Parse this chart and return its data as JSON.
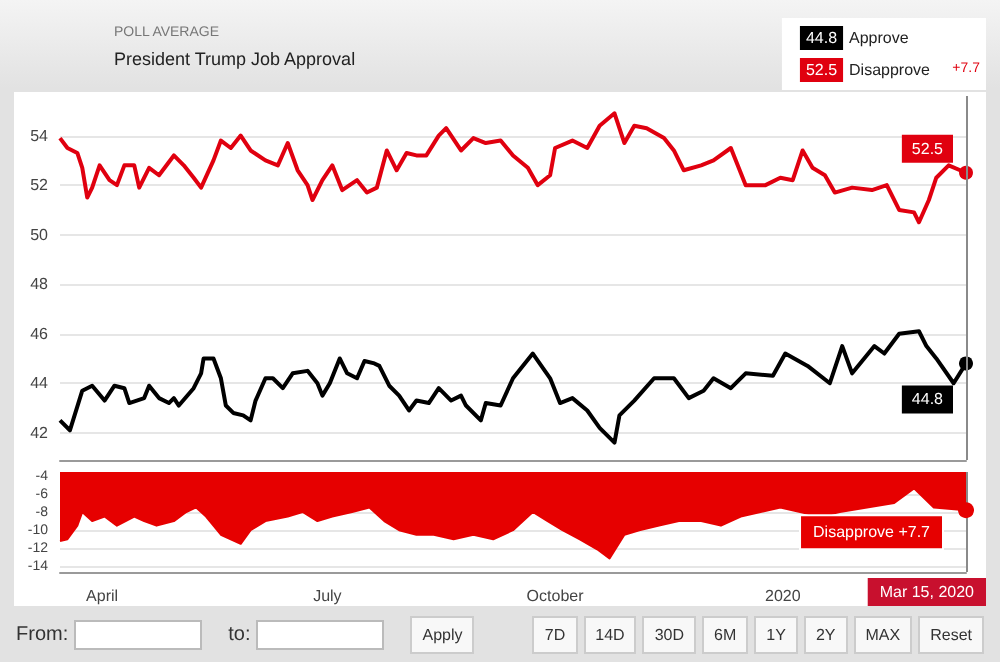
{
  "chart_data": [
    {
      "type": "line",
      "subtitle": "POLL AVERAGE",
      "title": "President Trump Job Approval",
      "xlim": [
        "2019-03-15",
        "2020-03-15"
      ],
      "ylim": [
        40.9,
        55.6
      ],
      "yticks": [
        42,
        44,
        46,
        48,
        50,
        52,
        54
      ],
      "grid": "y",
      "legend": "top right",
      "tick_labels": "y",
      "annotations": [
        "+7.7"
      ],
      "ref_lines": [
        {
          "axis": "x",
          "value": "2020-03-15"
        }
      ],
      "series": [
        {
          "name": "Approve",
          "color": "#000000",
          "x": [
            "2019-03-15",
            "2019-03-19",
            "2019-03-24",
            "2019-03-28",
            "2019-04-02",
            "2019-04-06",
            "2019-04-10",
            "2019-04-12",
            "2019-04-18",
            "2019-04-20",
            "2019-04-24",
            "2019-04-28",
            "2019-04-30",
            "2019-05-02",
            "2019-05-08",
            "2019-05-11",
            "2019-05-12",
            "2019-05-16",
            "2019-05-19",
            "2019-05-21",
            "2019-05-24",
            "2019-05-28",
            "2019-05-31",
            "2019-06-02",
            "2019-06-06",
            "2019-06-09",
            "2019-06-13",
            "2019-06-17",
            "2019-06-23",
            "2019-06-27",
            "2019-06-29",
            "2019-07-02",
            "2019-07-06",
            "2019-07-09",
            "2019-07-13",
            "2019-07-16",
            "2019-07-20",
            "2019-07-22",
            "2019-07-26",
            "2019-07-30",
            "2019-08-03",
            "2019-08-06",
            "2019-08-11",
            "2019-08-15",
            "2019-08-20",
            "2019-08-24",
            "2019-08-26",
            "2019-09-01",
            "2019-09-03",
            "2019-09-09",
            "2019-09-14",
            "2019-09-22",
            "2019-09-29",
            "2019-10-03",
            "2019-10-08",
            "2019-10-14",
            "2019-10-19",
            "2019-10-25",
            "2019-10-27",
            "2019-11-02",
            "2019-11-10",
            "2019-11-18",
            "2019-11-24",
            "2019-11-30",
            "2019-12-04",
            "2019-12-11",
            "2019-12-17",
            "2019-12-28",
            "2020-01-02",
            "2020-01-11",
            "2020-01-20",
            "2020-01-25",
            "2020-01-29",
            "2020-02-07",
            "2020-02-11",
            "2020-02-17",
            "2020-02-25",
            "2020-02-28",
            "2020-03-03",
            "2020-03-10",
            "2020-03-15"
          ],
          "values": [
            42.5,
            42.1,
            43.7,
            43.9,
            43.3,
            43.9,
            43.8,
            43.2,
            43.4,
            43.9,
            43.4,
            43.2,
            43.4,
            43.1,
            43.8,
            44.4,
            45.0,
            45.0,
            44.2,
            43.1,
            42.8,
            42.7,
            42.5,
            43.3,
            44.2,
            44.2,
            43.8,
            44.4,
            44.5,
            44.0,
            43.5,
            44.0,
            45.0,
            44.4,
            44.2,
            44.9,
            44.8,
            44.7,
            43.9,
            43.5,
            42.9,
            43.3,
            43.2,
            43.8,
            43.3,
            43.5,
            43.1,
            42.5,
            43.2,
            43.1,
            44.2,
            45.2,
            44.2,
            43.2,
            43.4,
            42.9,
            42.2,
            41.6,
            42.7,
            43.3,
            44.2,
            44.2,
            43.4,
            43.7,
            44.2,
            43.8,
            44.4,
            44.3,
            45.2,
            44.7,
            44.0,
            45.5,
            44.4,
            45.5,
            45.2,
            46.0,
            46.1,
            45.5,
            45.0,
            44.0,
            44.8
          ],
          "value_labels": [
            null,
            null,
            null,
            null,
            null,
            null,
            null,
            null,
            null,
            null,
            null,
            null,
            null,
            null,
            null,
            null,
            null,
            null,
            null,
            null,
            null,
            null,
            null,
            null,
            null,
            null,
            null,
            null,
            null,
            null,
            null,
            null,
            null,
            null,
            null,
            null,
            null,
            null,
            null,
            null,
            null,
            null,
            null,
            null,
            null,
            null,
            null,
            null,
            null,
            null,
            null,
            null,
            null,
            null,
            null,
            null,
            null,
            null,
            null,
            null,
            null,
            null,
            null,
            null,
            null,
            null,
            null,
            null,
            null,
            null,
            null,
            null,
            null,
            null,
            null,
            null,
            null,
            null,
            null,
            null,
            "44.8"
          ]
        },
        {
          "name": "Disapprove",
          "color": "#e0000f",
          "x": [
            "2019-03-15",
            "2019-03-18",
            "2019-03-22",
            "2019-03-24",
            "2019-03-26",
            "2019-03-28",
            "2019-03-31",
            "2019-04-04",
            "2019-04-07",
            "2019-04-10",
            "2019-04-14",
            "2019-04-16",
            "2019-04-20",
            "2019-04-24",
            "2019-04-30",
            "2019-05-04",
            "2019-05-08",
            "2019-05-11",
            "2019-05-16",
            "2019-05-19",
            "2019-05-23",
            "2019-05-27",
            "2019-05-31",
            "2019-06-06",
            "2019-06-11",
            "2019-06-15",
            "2019-06-19",
            "2019-06-23",
            "2019-06-25",
            "2019-06-29",
            "2019-07-03",
            "2019-07-07",
            "2019-07-13",
            "2019-07-17",
            "2019-07-21",
            "2019-07-25",
            "2019-07-29",
            "2019-08-02",
            "2019-08-06",
            "2019-08-10",
            "2019-08-15",
            "2019-08-18",
            "2019-08-24",
            "2019-08-29",
            "2019-09-03",
            "2019-09-09",
            "2019-09-14",
            "2019-09-20",
            "2019-09-24",
            "2019-09-29",
            "2019-10-01",
            "2019-10-08",
            "2019-10-14",
            "2019-10-19",
            "2019-10-25",
            "2019-10-29",
            "2019-11-02",
            "2019-11-07",
            "2019-11-14",
            "2019-11-18",
            "2019-11-22",
            "2019-11-29",
            "2019-12-04",
            "2019-12-11",
            "2019-12-17",
            "2019-12-25",
            "2019-12-31",
            "2020-01-05",
            "2020-01-09",
            "2020-01-13",
            "2020-01-18",
            "2020-01-22",
            "2020-01-29",
            "2020-02-06",
            "2020-02-12",
            "2020-02-17",
            "2020-02-23",
            "2020-02-25",
            "2020-02-29",
            "2020-03-03",
            "2020-03-08",
            "2020-03-15"
          ],
          "values": [
            53.9,
            53.5,
            53.3,
            52.7,
            51.5,
            51.9,
            52.8,
            52.2,
            52.0,
            52.8,
            52.8,
            51.9,
            52.7,
            52.4,
            53.2,
            52.8,
            52.3,
            51.9,
            53.0,
            53.8,
            53.5,
            54.0,
            53.4,
            53.0,
            52.8,
            53.7,
            52.6,
            52.0,
            51.4,
            52.2,
            52.8,
            51.8,
            52.2,
            51.7,
            51.9,
            53.4,
            52.6,
            53.3,
            53.2,
            53.2,
            54.0,
            54.3,
            53.4,
            53.9,
            53.7,
            53.8,
            53.2,
            52.7,
            52.0,
            52.4,
            53.5,
            53.8,
            53.5,
            54.4,
            54.9,
            53.7,
            54.4,
            54.3,
            53.9,
            53.4,
            52.6,
            52.8,
            53.0,
            53.5,
            52.0,
            52.0,
            52.3,
            52.2,
            53.4,
            52.7,
            52.4,
            51.7,
            51.9,
            51.8,
            52.0,
            51.0,
            50.9,
            50.5,
            51.4,
            52.3,
            52.8,
            52.5
          ],
          "value_labels": [
            null,
            null,
            null,
            null,
            null,
            null,
            null,
            null,
            null,
            null,
            null,
            null,
            null,
            null,
            null,
            null,
            null,
            null,
            null,
            null,
            null,
            null,
            null,
            null,
            null,
            null,
            null,
            null,
            null,
            null,
            null,
            null,
            null,
            null,
            null,
            null,
            null,
            null,
            null,
            null,
            null,
            null,
            null,
            null,
            null,
            null,
            null,
            null,
            null,
            null,
            null,
            null,
            null,
            null,
            null,
            null,
            null,
            null,
            null,
            null,
            null,
            null,
            null,
            null,
            null,
            null,
            null,
            null,
            null,
            null,
            null,
            null,
            null,
            null,
            null,
            null,
            null,
            null,
            null,
            null,
            null,
            "52.5"
          ]
        }
      ]
    },
    {
      "type": "area",
      "color": "#e60000",
      "xlim": [
        "2019-03-15",
        "2020-03-15"
      ],
      "xticks": [
        {
          "value": "2019-04-01",
          "label": "April"
        },
        {
          "value": "2019-07-01",
          "label": "July"
        },
        {
          "value": "2019-10-01",
          "label": "October"
        },
        {
          "value": "2020-01-01",
          "label": "2020"
        }
      ],
      "ylim": [
        -14.5,
        -3.5
      ],
      "yticks": [
        -14,
        -12,
        -10,
        -8,
        -6,
        -4
      ],
      "grid": "y",
      "ref_lines": [
        {
          "axis": "x",
          "value": "2020-03-15",
          "label": "Mar 15, 2020"
        }
      ],
      "annotations": [
        {
          "text": "Disapprove +7.7",
          "x": "2020-03-15",
          "y": -7.7
        },
        "From:",
        "to:",
        "Apply",
        "7D",
        "14D",
        "30D",
        "6M",
        "1Y",
        "2Y",
        "MAX",
        "Reset"
      ],
      "x": [
        "2019-03-15",
        "2019-03-18",
        "2019-03-22",
        "2019-03-24",
        "2019-03-28",
        "2019-04-02",
        "2019-04-07",
        "2019-04-14",
        "2019-04-18",
        "2019-04-23",
        "2019-04-30",
        "2019-05-05",
        "2019-05-09",
        "2019-05-13",
        "2019-05-19",
        "2019-05-23",
        "2019-05-27",
        "2019-05-31",
        "2019-06-06",
        "2019-06-15",
        "2019-06-21",
        "2019-06-27",
        "2019-07-03",
        "2019-07-11",
        "2019-07-18",
        "2019-07-24",
        "2019-07-30",
        "2019-08-06",
        "2019-08-13",
        "2019-08-21",
        "2019-08-29",
        "2019-09-06",
        "2019-09-14",
        "2019-09-22",
        "2019-09-28",
        "2019-10-04",
        "2019-10-11",
        "2019-10-18",
        "2019-10-23",
        "2019-10-29",
        "2019-11-04",
        "2019-11-12",
        "2019-11-20",
        "2019-11-29",
        "2019-12-07",
        "2019-12-15",
        "2019-12-23",
        "2019-12-31",
        "2020-01-08",
        "2020-01-16",
        "2020-01-24",
        "2020-02-04",
        "2020-02-15",
        "2020-02-23",
        "2020-03-02",
        "2020-03-15"
      ],
      "values": [
        -11.1,
        -10.9,
        -9.4,
        -7.9,
        -8.9,
        -8.4,
        -9.4,
        -8.4,
        -8.9,
        -9.4,
        -8.9,
        -7.9,
        -7.4,
        -8.4,
        -10.4,
        -10.9,
        -11.4,
        -9.9,
        -8.9,
        -8.4,
        -7.9,
        -8.9,
        -8.4,
        -7.9,
        -7.4,
        -8.9,
        -9.9,
        -10.4,
        -10.4,
        -10.9,
        -10.4,
        -10.9,
        -9.9,
        -7.9,
        -8.9,
        -9.9,
        -10.9,
        -12.0,
        -13.0,
        -10.4,
        -9.9,
        -9.4,
        -8.9,
        -8.9,
        -9.4,
        -8.4,
        -7.9,
        -7.4,
        -7.9,
        -8.4,
        -7.9,
        -7.4,
        -6.9,
        -5.3,
        -7.4,
        -7.7
      ]
    }
  ]
}
